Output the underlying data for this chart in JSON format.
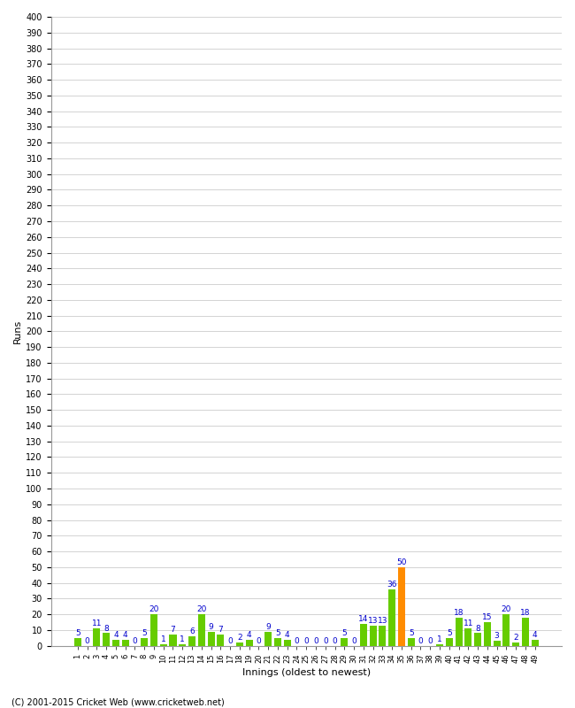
{
  "xlabel": "Innings (oldest to newest)",
  "ylabel": "Runs",
  "values": [
    5,
    0,
    11,
    8,
    4,
    4,
    0,
    5,
    20,
    1,
    7,
    1,
    6,
    20,
    9,
    7,
    0,
    2,
    4,
    0,
    9,
    5,
    4,
    0,
    0,
    0,
    0,
    0,
    5,
    0,
    14,
    13,
    13,
    36,
    50,
    5,
    0,
    0,
    1,
    5,
    18,
    11,
    8,
    15,
    3,
    20,
    2,
    18,
    4
  ],
  "innings": [
    "1",
    "2",
    "3",
    "4",
    "5",
    "6",
    "7",
    "8",
    "9",
    "10",
    "11",
    "12",
    "13",
    "14",
    "15",
    "16",
    "17",
    "18",
    "19",
    "20",
    "21",
    "22",
    "23",
    "24",
    "25",
    "26",
    "27",
    "28",
    "29",
    "30",
    "31",
    "32",
    "33",
    "34",
    "35",
    "36",
    "37",
    "38",
    "39",
    "40",
    "41",
    "42",
    "43",
    "44",
    "45",
    "46",
    "47",
    "48",
    "49"
  ],
  "highlight_index": 34,
  "bar_color": "#66cc00",
  "highlight_color": "#ff8c00",
  "label_color": "#0000cc",
  "bg_color": "#ffffff",
  "grid_color": "#cccccc",
  "ylim": [
    0,
    400
  ],
  "yticks": [
    0,
    10,
    20,
    30,
    40,
    50,
    60,
    70,
    80,
    90,
    100,
    110,
    120,
    130,
    140,
    150,
    160,
    170,
    180,
    190,
    200,
    210,
    220,
    230,
    240,
    250,
    260,
    270,
    280,
    290,
    300,
    310,
    320,
    330,
    340,
    350,
    360,
    370,
    380,
    390,
    400
  ],
  "footer": "(C) 2001-2015 Cricket Web (www.cricketweb.net)",
  "label_fontsize": 6.5,
  "tick_fontsize": 7,
  "xtick_fontsize": 6
}
